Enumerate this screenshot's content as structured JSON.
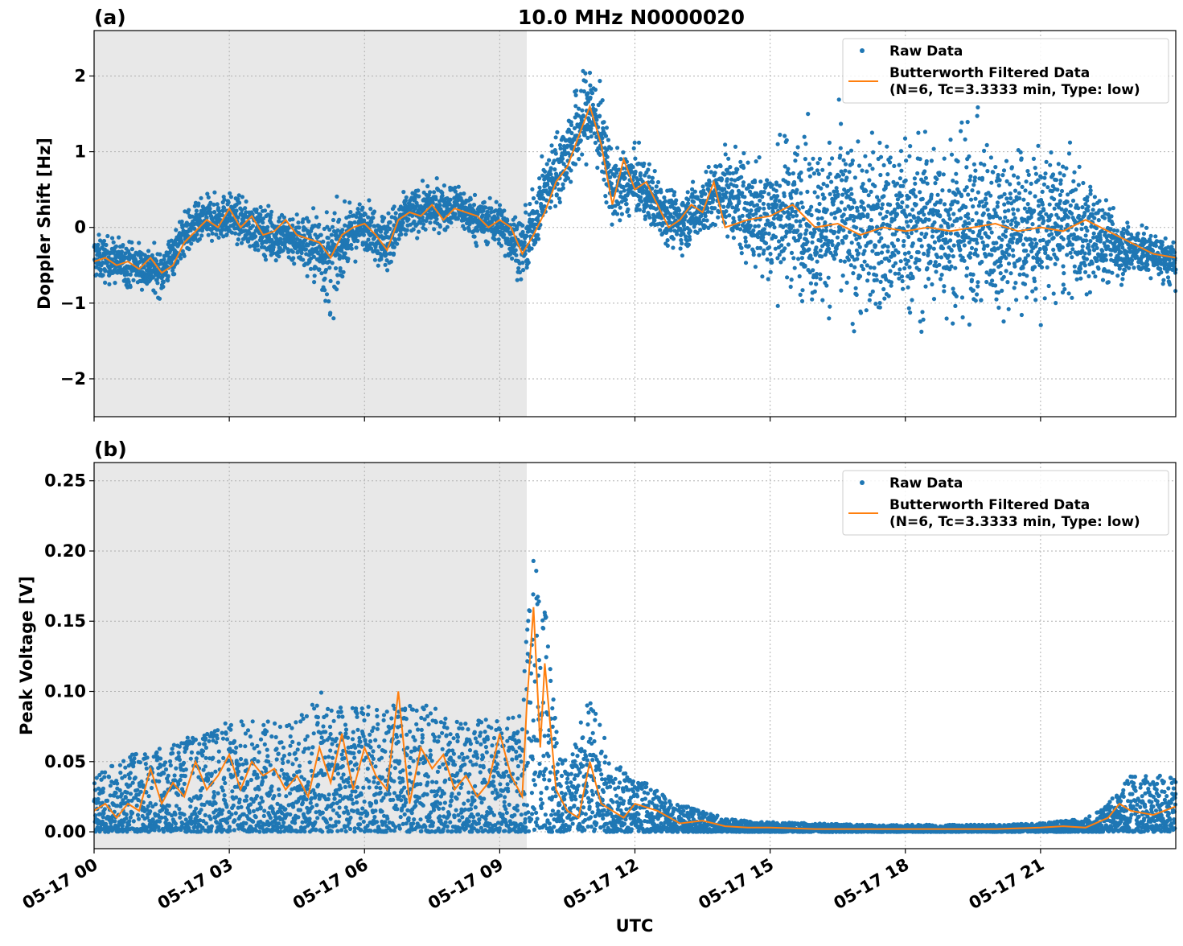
{
  "chart_data": [
    {
      "type": "scatter",
      "panel_label": "(a)",
      "title": "10.0 MHz N0000020",
      "ylabel": "Doppler Shift [Hz]",
      "xlabel": "",
      "xlim": [
        0,
        24
      ],
      "ylim": [
        -2.5,
        2.6
      ],
      "yticks": [
        -2,
        -1,
        0,
        1,
        2
      ],
      "ytick_labels": [
        "−2",
        "−1",
        "0",
        "1",
        "2"
      ],
      "shaded_x": [
        0,
        9.6
      ],
      "grid": true,
      "legend_position": "top-right",
      "legend": [
        "Raw Data",
        "Butterworth Filtered Data",
        "(N=6, Tc=3.3333 min, Type: low)"
      ],
      "series": [
        {
          "name": "Raw Data",
          "kind": "points",
          "color": "#1f77b4",
          "x": [
            0.0,
            0.5,
            1.0,
            1.5,
            2.0,
            2.5,
            3.0,
            3.5,
            4.0,
            4.5,
            5.0,
            5.25,
            5.5,
            6.0,
            6.5,
            7.0,
            7.5,
            8.0,
            8.5,
            9.0,
            9.5,
            9.6,
            10.0,
            10.5,
            11.0,
            11.25,
            11.5,
            12.0,
            12.5,
            13.0,
            13.5,
            14.0,
            14.5,
            15.0,
            15.5,
            16.0,
            16.5,
            17.0,
            17.5,
            18.0,
            18.5,
            19.0,
            19.5,
            20.0,
            20.5,
            21.0,
            21.5,
            22.0,
            22.5,
            23.0,
            23.5,
            24.0
          ],
          "center": [
            -0.4,
            -0.45,
            -0.5,
            -0.6,
            -0.1,
            0.1,
            0.15,
            0.0,
            -0.1,
            -0.15,
            -0.3,
            -0.5,
            -0.2,
            0.05,
            -0.2,
            0.2,
            0.25,
            0.3,
            0.1,
            0.05,
            -0.3,
            -0.2,
            0.5,
            1.0,
            1.6,
            1.2,
            0.5,
            0.6,
            0.3,
            0.05,
            0.3,
            0.5,
            0.2,
            0.1,
            0.25,
            0.0,
            0.1,
            -0.05,
            0.0,
            0.0,
            0.0,
            0.05,
            0.05,
            0.0,
            0.0,
            0.0,
            0.05,
            -0.1,
            -0.2,
            -0.3,
            -0.35,
            -0.5
          ],
          "spread": [
            0.25,
            0.25,
            0.25,
            0.25,
            0.25,
            0.25,
            0.25,
            0.25,
            0.3,
            0.3,
            0.45,
            0.6,
            0.35,
            0.25,
            0.35,
            0.25,
            0.25,
            0.25,
            0.25,
            0.25,
            0.35,
            0.35,
            0.35,
            0.45,
            0.55,
            0.5,
            0.4,
            0.35,
            0.35,
            0.3,
            0.35,
            0.45,
            0.6,
            0.75,
            0.85,
            0.9,
            0.95,
            1.0,
            1.0,
            1.0,
            1.0,
            1.0,
            1.0,
            0.95,
            0.9,
            0.9,
            0.8,
            0.65,
            0.45,
            0.3,
            0.25,
            0.25
          ]
        },
        {
          "name": "Butterworth Filtered Data",
          "kind": "line",
          "color": "#ff7f0e",
          "x": [
            0.0,
            0.25,
            0.5,
            0.75,
            1.0,
            1.25,
            1.5,
            1.75,
            2.0,
            2.25,
            2.5,
            2.75,
            3.0,
            3.25,
            3.5,
            3.75,
            4.0,
            4.25,
            4.5,
            4.75,
            5.0,
            5.25,
            5.5,
            5.75,
            6.0,
            6.25,
            6.5,
            6.75,
            7.0,
            7.25,
            7.5,
            7.75,
            8.0,
            8.25,
            8.5,
            8.75,
            9.0,
            9.25,
            9.5,
            9.75,
            10.0,
            10.25,
            10.5,
            10.75,
            11.0,
            11.25,
            11.5,
            11.75,
            12.0,
            12.25,
            12.5,
            12.75,
            13.0,
            13.25,
            13.5,
            13.75,
            14.0,
            14.5,
            15.0,
            15.5,
            16.0,
            16.5,
            17.0,
            17.5,
            18.0,
            18.5,
            19.0,
            19.5,
            20.0,
            20.5,
            21.0,
            21.5,
            22.0,
            22.5,
            23.0,
            23.5,
            24.0
          ],
          "y": [
            -0.45,
            -0.4,
            -0.5,
            -0.45,
            -0.55,
            -0.4,
            -0.6,
            -0.5,
            -0.2,
            -0.05,
            0.1,
            0.0,
            0.25,
            0.0,
            0.15,
            -0.1,
            -0.05,
            0.1,
            -0.1,
            -0.15,
            -0.2,
            -0.4,
            -0.1,
            0.0,
            0.05,
            -0.1,
            -0.3,
            0.1,
            0.2,
            0.15,
            0.3,
            0.1,
            0.25,
            0.2,
            0.15,
            0.0,
            0.1,
            0.0,
            -0.35,
            -0.1,
            0.2,
            0.6,
            0.8,
            1.2,
            1.6,
            1.1,
            0.3,
            0.9,
            0.5,
            0.6,
            0.3,
            0.0,
            0.1,
            0.3,
            0.2,
            0.6,
            0.0,
            0.1,
            0.15,
            0.3,
            0.0,
            0.05,
            -0.1,
            0.0,
            -0.05,
            0.0,
            -0.05,
            0.0,
            0.05,
            -0.05,
            0.0,
            -0.05,
            0.1,
            -0.05,
            -0.2,
            -0.35,
            -0.4
          ]
        }
      ]
    },
    {
      "type": "scatter",
      "panel_label": "(b)",
      "title": "",
      "ylabel": "Peak Voltage [V]",
      "xlabel": "UTC",
      "xlim": [
        0,
        24
      ],
      "ylim": [
        -0.012,
        0.263
      ],
      "yticks": [
        0.0,
        0.05,
        0.1,
        0.15,
        0.2,
        0.25
      ],
      "ytick_labels": [
        "0.00",
        "0.05",
        "0.10",
        "0.15",
        "0.20",
        "0.25"
      ],
      "xticks": [
        0,
        3,
        6,
        9,
        12,
        15,
        18,
        21
      ],
      "xtick_labels": [
        "05-17 00",
        "05-17 03",
        "05-17 06",
        "05-17 09",
        "05-17 12",
        "05-17 15",
        "05-17 18",
        "05-17 21"
      ],
      "shaded_x": [
        0,
        9.6
      ],
      "grid": true,
      "legend_position": "top-right",
      "legend": [
        "Raw Data",
        "Butterworth Filtered Data",
        "(N=6, Tc=3.3333 min, Type: low)"
      ],
      "series": [
        {
          "name": "Raw Data",
          "kind": "points",
          "color": "#1f77b4",
          "x": [
            0.0,
            0.5,
            1.0,
            1.5,
            2.0,
            2.5,
            3.0,
            3.5,
            4.0,
            4.5,
            5.0,
            5.5,
            6.0,
            6.5,
            7.0,
            7.5,
            8.0,
            8.5,
            9.0,
            9.5,
            9.7,
            10.0,
            10.3,
            10.5,
            11.0,
            11.5,
            12.0,
            12.5,
            13.0,
            13.5,
            14.0,
            14.5,
            15.0,
            16.0,
            17.0,
            18.0,
            19.0,
            20.0,
            21.0,
            22.0,
            22.5,
            23.0,
            23.5,
            24.0
          ],
          "low": [
            0.0,
            0.0,
            0.0,
            0.0,
            0.0,
            0.0,
            0.0,
            0.0,
            0.0,
            0.0,
            0.0,
            0.0,
            0.0,
            0.0,
            0.0,
            0.0,
            0.0,
            0.0,
            0.0,
            0.0,
            0.0,
            0.0,
            0.0,
            0.0,
            0.0,
            0.0,
            0.0,
            0.0,
            0.0,
            0.0,
            0.0,
            0.0,
            0.0,
            0.0,
            0.0,
            0.0,
            0.0,
            0.0,
            0.0,
            0.0,
            0.0,
            0.0,
            0.0,
            0.0
          ],
          "high": [
            0.04,
            0.05,
            0.06,
            0.06,
            0.07,
            0.07,
            0.08,
            0.08,
            0.08,
            0.08,
            0.1,
            0.09,
            0.09,
            0.09,
            0.09,
            0.09,
            0.08,
            0.08,
            0.08,
            0.09,
            0.2,
            0.18,
            0.07,
            0.05,
            0.1,
            0.05,
            0.04,
            0.03,
            0.02,
            0.015,
            0.01,
            0.008,
            0.007,
            0.006,
            0.005,
            0.005,
            0.005,
            0.005,
            0.006,
            0.01,
            0.02,
            0.04,
            0.04,
            0.04
          ]
        },
        {
          "name": "Butterworth Filtered Data",
          "kind": "line",
          "color": "#ff7f0e",
          "x": [
            0.0,
            0.25,
            0.5,
            0.75,
            1.0,
            1.25,
            1.5,
            1.75,
            2.0,
            2.25,
            2.5,
            2.75,
            3.0,
            3.25,
            3.5,
            3.75,
            4.0,
            4.25,
            4.5,
            4.75,
            5.0,
            5.25,
            5.5,
            5.75,
            6.0,
            6.25,
            6.5,
            6.75,
            7.0,
            7.25,
            7.5,
            7.75,
            8.0,
            8.25,
            8.5,
            8.75,
            9.0,
            9.25,
            9.5,
            9.6,
            9.75,
            9.9,
            10.0,
            10.25,
            10.5,
            10.75,
            11.0,
            11.25,
            11.5,
            11.75,
            12.0,
            12.5,
            13.0,
            13.5,
            14.0,
            14.5,
            15.0,
            16.0,
            17.0,
            18.0,
            19.0,
            20.0,
            21.0,
            21.5,
            22.0,
            22.5,
            22.75,
            23.0,
            23.5,
            24.0
          ],
          "y": [
            0.015,
            0.02,
            0.01,
            0.02,
            0.015,
            0.045,
            0.02,
            0.035,
            0.025,
            0.05,
            0.03,
            0.04,
            0.055,
            0.03,
            0.05,
            0.04,
            0.045,
            0.03,
            0.04,
            0.025,
            0.06,
            0.035,
            0.07,
            0.03,
            0.06,
            0.04,
            0.03,
            0.1,
            0.02,
            0.06,
            0.045,
            0.055,
            0.03,
            0.04,
            0.025,
            0.035,
            0.07,
            0.04,
            0.025,
            0.09,
            0.16,
            0.06,
            0.12,
            0.03,
            0.015,
            0.01,
            0.05,
            0.02,
            0.015,
            0.01,
            0.02,
            0.015,
            0.006,
            0.008,
            0.004,
            0.003,
            0.003,
            0.002,
            0.002,
            0.002,
            0.002,
            0.002,
            0.003,
            0.004,
            0.003,
            0.01,
            0.02,
            0.015,
            0.012,
            0.018
          ]
        }
      ]
    }
  ]
}
